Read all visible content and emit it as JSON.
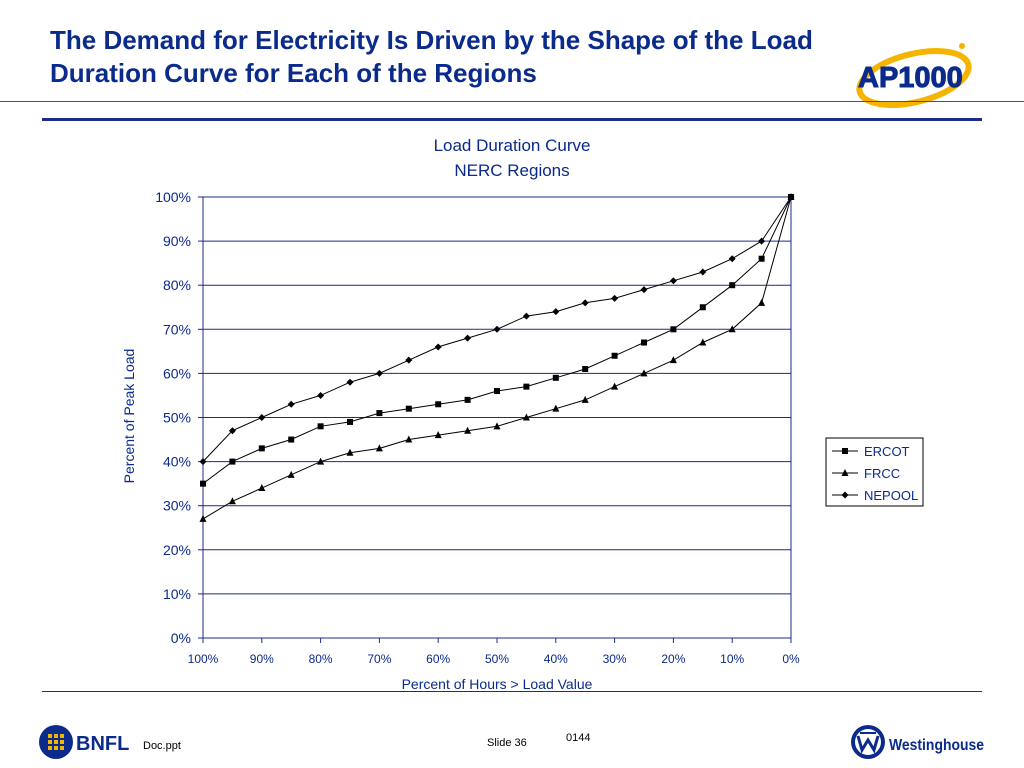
{
  "slide": {
    "title_line1": "The Demand for Electricity Is Driven by the Shape of the Load",
    "title_line2": "Duration Curve for Each of the Regions"
  },
  "logos": {
    "ap1000": "AP1000",
    "bnfl": "BNFL",
    "westinghouse": "Westinghouse"
  },
  "footer": {
    "file": "Doc.ppt",
    "slide": "Slide 36",
    "code": "0144"
  },
  "colors": {
    "title": "#0a2a8c",
    "axis_text": "#0a2a8c",
    "gridline": "#1a2c8c",
    "series": "#000000"
  },
  "chart_data": {
    "type": "line",
    "title": "Load Duration Curve",
    "subtitle": "NERC Regions",
    "xlabel": "Percent of Hours > Load Value",
    "ylabel": "Percent of Peak Load",
    "x": [
      100,
      95,
      90,
      85,
      80,
      75,
      70,
      65,
      60,
      55,
      50,
      45,
      40,
      35,
      30,
      25,
      20,
      15,
      10,
      5,
      0
    ],
    "xlim": [
      100,
      0
    ],
    "ylim": [
      0,
      100
    ],
    "x_ticks": [
      "100%",
      "90%",
      "80%",
      "70%",
      "60%",
      "50%",
      "40%",
      "30%",
      "20%",
      "10%",
      "0%"
    ],
    "y_ticks": [
      "0%",
      "10%",
      "20%",
      "30%",
      "40%",
      "50%",
      "60%",
      "70%",
      "80%",
      "90%",
      "100%"
    ],
    "grid": "horizontal",
    "legend_position": "right",
    "series": [
      {
        "name": "ERCOT",
        "marker": "square",
        "values": [
          35,
          40,
          43,
          45,
          48,
          49,
          51,
          52,
          53,
          54,
          56,
          57,
          59,
          61,
          64,
          67,
          70,
          75,
          80,
          86,
          100
        ]
      },
      {
        "name": "FRCC",
        "marker": "triangle",
        "values": [
          27,
          31,
          34,
          37,
          40,
          42,
          43,
          45,
          46,
          47,
          48,
          50,
          52,
          54,
          57,
          60,
          63,
          67,
          70,
          76,
          100
        ]
      },
      {
        "name": "NEPOOL",
        "marker": "diamond",
        "values": [
          40,
          47,
          50,
          53,
          55,
          58,
          60,
          63,
          66,
          68,
          70,
          73,
          74,
          76,
          77,
          79,
          81,
          83,
          86,
          90,
          100
        ]
      }
    ]
  }
}
